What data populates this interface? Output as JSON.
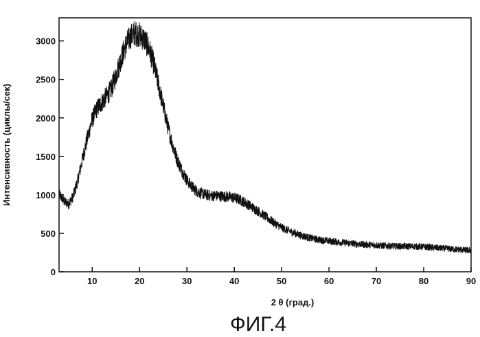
{
  "chart_data": {
    "type": "line",
    "title": "",
    "xlabel": "2 θ  (град.)",
    "ylabel": "Интенсивность (циклы/сек)",
    "caption": "ФИГ.4",
    "xlim": [
      3,
      90
    ],
    "ylim": [
      0,
      3300
    ],
    "xticks": [
      "10",
      "20",
      "30",
      "40",
      "50",
      "60",
      "70",
      "80",
      "90"
    ],
    "yticks": [
      "0",
      "500",
      "1000",
      "1500",
      "2000",
      "2500",
      "3000"
    ],
    "grid": false,
    "legend": "none",
    "line_color": "#111111",
    "series": [
      {
        "x": [
          3,
          4,
          5,
          6,
          7,
          8,
          9,
          10,
          11,
          12,
          13,
          14,
          15,
          16,
          17,
          18,
          19,
          20,
          21,
          22,
          23,
          24,
          25,
          26,
          27,
          28,
          29,
          30,
          31,
          32,
          33,
          34,
          35,
          36,
          37,
          38,
          39,
          40,
          41,
          42,
          43,
          44,
          45,
          46,
          47,
          48,
          49,
          50,
          52,
          54,
          56,
          58,
          60,
          62,
          64,
          66,
          68,
          70,
          72,
          74,
          76,
          78,
          80,
          82,
          84,
          86,
          88,
          90
        ],
        "values": [
          1010,
          920,
          880,
          980,
          1200,
          1480,
          1740,
          1980,
          2120,
          2200,
          2280,
          2370,
          2550,
          2750,
          2930,
          3050,
          3100,
          3080,
          3020,
          2900,
          2700,
          2430,
          2150,
          1880,
          1640,
          1450,
          1310,
          1190,
          1110,
          1050,
          1020,
          1000,
          990,
          990,
          985,
          980,
          975,
          960,
          940,
          910,
          870,
          830,
          790,
          745,
          700,
          655,
          615,
          575,
          520,
          475,
          440,
          415,
          400,
          385,
          372,
          360,
          352,
          345,
          338,
          332,
          330,
          330,
          325,
          315,
          305,
          295,
          285,
          275
        ]
      }
    ]
  }
}
